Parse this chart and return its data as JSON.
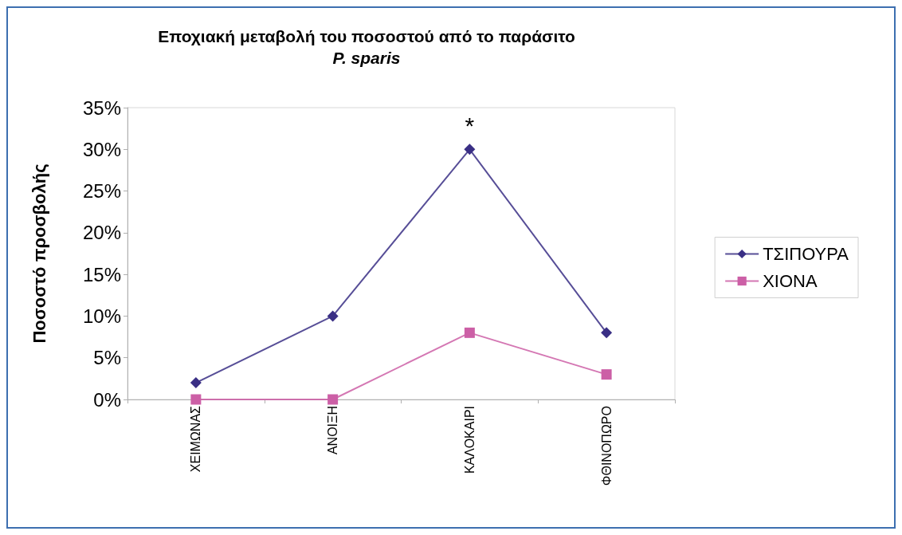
{
  "chart_data": {
    "type": "line",
    "title": "Εποχιακή μεταβολή του ποσοστού από το παράσιτο",
    "subtitle": "P. sparis",
    "ylabel": "Ποσοστό προσβολής",
    "categories": [
      "ΧΕΙΜΩΝΑΣ",
      "ΑΝΟΙΞΗ",
      "ΚΑΛΟΚΑΙΡΙ",
      "ΦΘΙΝΟΠΩΡΟ"
    ],
    "series": [
      {
        "name": "ΤΣΙΠΟΥΡΑ",
        "color": "#3a2f85",
        "marker": "diamond",
        "values": [
          2,
          10,
          30,
          8
        ]
      },
      {
        "name": "ΧΙΟΝΑ",
        "color": "#cc5fa6",
        "marker": "square",
        "values": [
          0,
          0,
          8,
          3
        ]
      }
    ],
    "ylim": [
      0,
      35
    ],
    "yticks": [
      {
        "value": 0,
        "label": "0%"
      },
      {
        "value": 5,
        "label": "5%"
      },
      {
        "value": 10,
        "label": "10%"
      },
      {
        "value": 15,
        "label": "15%"
      },
      {
        "value": 20,
        "label": "20%"
      },
      {
        "value": 25,
        "label": "25%"
      },
      {
        "value": 30,
        "label": "30%"
      },
      {
        "value": 35,
        "label": "35%"
      }
    ],
    "annotations": [
      "*"
    ],
    "grid": false,
    "legend": "right",
    "line_style": "solid"
  }
}
